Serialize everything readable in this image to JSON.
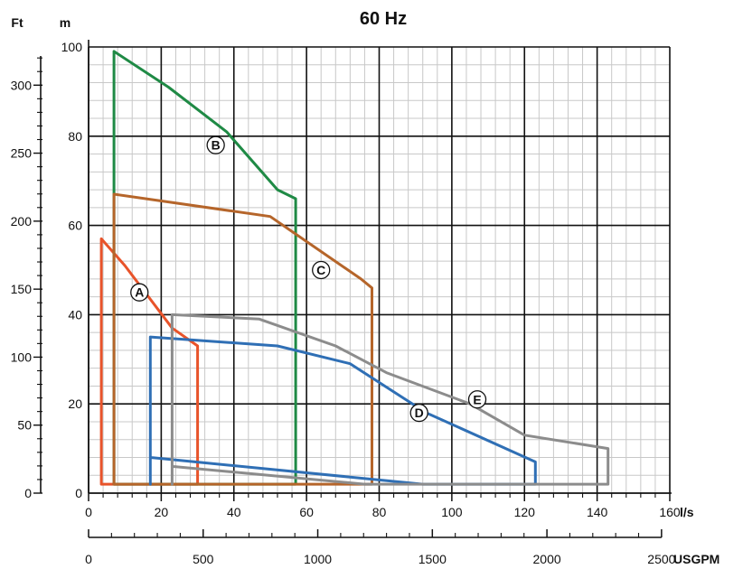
{
  "chart_data": {
    "type": "area",
    "title": "60 Hz",
    "x_primary": {
      "unit": "l/s",
      "range": [
        0,
        160
      ],
      "ticks": [
        "0",
        "20",
        "40",
        "60",
        "80",
        "100",
        "120",
        "140",
        "160"
      ]
    },
    "x_secondary": {
      "unit": "USGPM",
      "ticks": [
        "0",
        "500",
        "1000",
        "1500",
        "2000",
        "2500"
      ],
      "tick_values": [
        0,
        500,
        1000,
        1500,
        2000,
        2500
      ]
    },
    "y_primary": {
      "unit": "m",
      "range": [
        0,
        100
      ],
      "ticks": [
        "0",
        "20",
        "40",
        "60",
        "80",
        "100"
      ]
    },
    "y_secondary": {
      "unit": "Ft",
      "ticks": [
        "0",
        "50",
        "100",
        "150",
        "200",
        "250",
        "300"
      ],
      "tick_values": [
        0,
        50,
        100,
        150,
        200,
        250,
        300
      ]
    },
    "grid": true,
    "colors": {
      "A": "#e8532a",
      "B": "#1f8a45",
      "C": "#b5652a",
      "D": "#2f6fb5",
      "E": "#8c8c8c",
      "grid_minor": "#c8c8c8",
      "grid_major": "#111111"
    },
    "series": [
      {
        "name": "A",
        "label_at": [
          14,
          45
        ],
        "points": [
          [
            3.5,
            2
          ],
          [
            3.5,
            57
          ],
          [
            10,
            51
          ],
          [
            23,
            37
          ],
          [
            30,
            33
          ],
          [
            30,
            2
          ]
        ]
      },
      {
        "name": "B",
        "label_at": [
          35,
          78
        ],
        "points": [
          [
            7,
            2
          ],
          [
            7,
            99
          ],
          [
            22,
            91
          ],
          [
            38,
            81
          ],
          [
            52,
            68
          ],
          [
            57,
            66
          ],
          [
            57,
            2
          ],
          [
            35,
            2
          ]
        ]
      },
      {
        "name": "C",
        "label_at": [
          64,
          50
        ],
        "points": [
          [
            7,
            2
          ],
          [
            7,
            67
          ],
          [
            50,
            62
          ],
          [
            75,
            48
          ],
          [
            78,
            46
          ],
          [
            78,
            2
          ]
        ]
      },
      {
        "name": "D",
        "label_at": [
          91,
          18
        ],
        "points": [
          [
            17,
            2
          ],
          [
            17,
            35
          ],
          [
            52,
            33
          ],
          [
            72,
            29
          ],
          [
            93,
            18
          ],
          [
            123,
            7
          ],
          [
            123,
            2
          ],
          [
            92,
            2
          ],
          [
            17,
            8
          ]
        ]
      },
      {
        "name": "E",
        "label_at": [
          107,
          21
        ],
        "points": [
          [
            23,
            2
          ],
          [
            23,
            40
          ],
          [
            47,
            39
          ],
          [
            68,
            33
          ],
          [
            82,
            27
          ],
          [
            105,
            20
          ],
          [
            120,
            13
          ],
          [
            143,
            10
          ],
          [
            143,
            2
          ],
          [
            76,
            2
          ],
          [
            23,
            6
          ]
        ]
      }
    ]
  }
}
